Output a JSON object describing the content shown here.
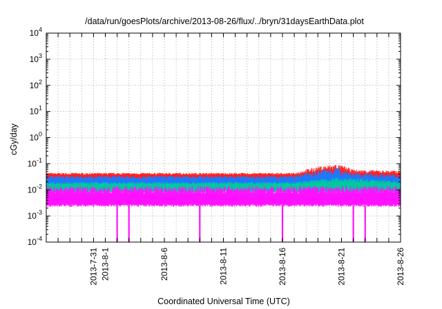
{
  "chart_data": {
    "type": "line",
    "title": "/data/run/goesPlots/archive/2013-08-26/flux/../bryn/31daysEarthData.plot",
    "xlabel": "Coordinated Universal Time (UTC)",
    "ylabel": "cGy/day",
    "yscale": "log",
    "ylim": [
      0.0001,
      10000
    ],
    "xlim": [
      "2013-07-27",
      "2013-08-26"
    ],
    "grid": true,
    "x_tick_labels": [
      "2013-7-31",
      "2013-8-1",
      "2013-8-6",
      "2013-8-11",
      "2013-8-16",
      "2013-8-21",
      "2013-8-26"
    ],
    "x_tick_dates": [
      "2013-07-31",
      "2013-08-01",
      "2013-08-06",
      "2013-08-11",
      "2013-08-16",
      "2013-08-21",
      "2013-08-26"
    ],
    "y_tick_labels": [
      {
        "base": "10",
        "exp": "-4"
      },
      {
        "base": "10",
        "exp": "-3"
      },
      {
        "base": "10",
        "exp": "-2"
      },
      {
        "base": "10",
        "exp": "-1"
      },
      {
        "base": "10",
        "exp": "0"
      },
      {
        "base": "10",
        "exp": "1"
      },
      {
        "base": "10",
        "exp": "2"
      },
      {
        "base": "10",
        "exp": "3"
      },
      {
        "base": "10",
        "exp": "4"
      }
    ],
    "y_tick_values": [
      0.0001,
      0.001,
      0.01,
      0.1,
      1,
      10,
      100,
      1000,
      10000
    ],
    "series": [
      {
        "color": "#ff2020",
        "min": 0.02,
        "max": 0.045,
        "envelope": [
          [
            0,
            0.045
          ],
          [
            21,
            0.045
          ],
          [
            22.5,
            0.07
          ],
          [
            24.5,
            0.1
          ],
          [
            26,
            0.06
          ],
          [
            30,
            0.055
          ]
        ]
      },
      {
        "color": "#1e78ff",
        "min": 0.012,
        "max": 0.035,
        "envelope": [
          [
            0,
            0.035
          ],
          [
            21,
            0.035
          ],
          [
            22.5,
            0.05
          ],
          [
            24.5,
            0.075
          ],
          [
            26,
            0.045
          ],
          [
            30,
            0.04
          ]
        ]
      },
      {
        "color": "#00c8a0",
        "min": 0.008,
        "max": 0.02,
        "envelope": [
          [
            0,
            0.02
          ],
          [
            21,
            0.02
          ],
          [
            24.5,
            0.03
          ],
          [
            30,
            0.022
          ]
        ]
      },
      {
        "color": "#ff10ff",
        "min": 0.0025,
        "max": 0.014,
        "dropouts": [
          "2013-08-02",
          "2013-08-03",
          "2013-08-09",
          "2013-08-16",
          "2013-08-22",
          "2013-08-23"
        ],
        "dropout_min": 0.0001
      }
    ]
  }
}
